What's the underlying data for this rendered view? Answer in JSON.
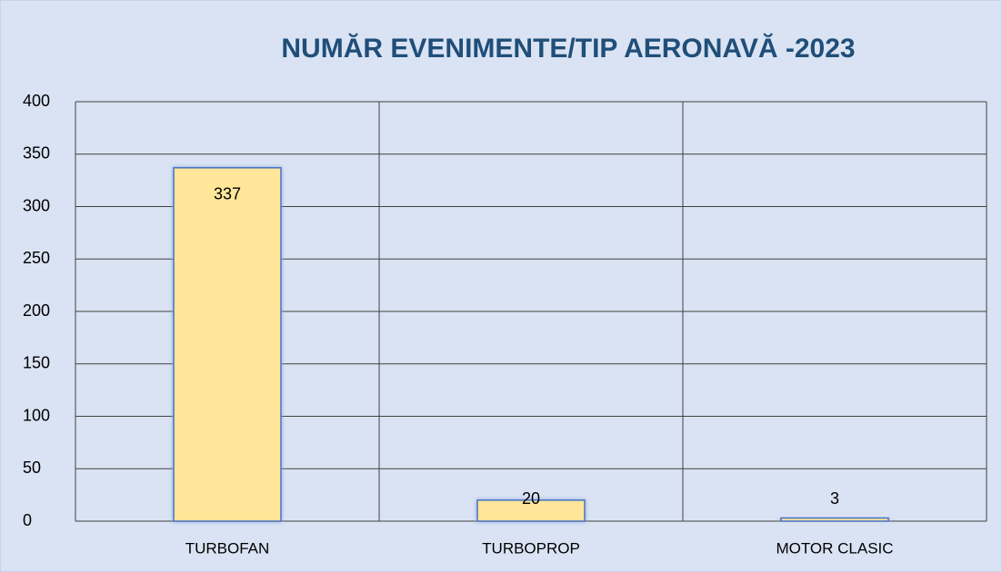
{
  "chart_data": {
    "type": "bar",
    "title": "NUMĂR EVENIMENTE/TIP AERONAVĂ -2023",
    "categories": [
      "TURBOFAN",
      "TURBOPROP",
      "MOTOR CLASIC"
    ],
    "values": [
      337,
      20,
      3
    ],
    "color": "#ffe699",
    "ylim": [
      0,
      400
    ],
    "yticks": [
      0,
      50,
      100,
      150,
      200,
      250,
      300,
      350,
      400
    ],
    "grid": true
  }
}
